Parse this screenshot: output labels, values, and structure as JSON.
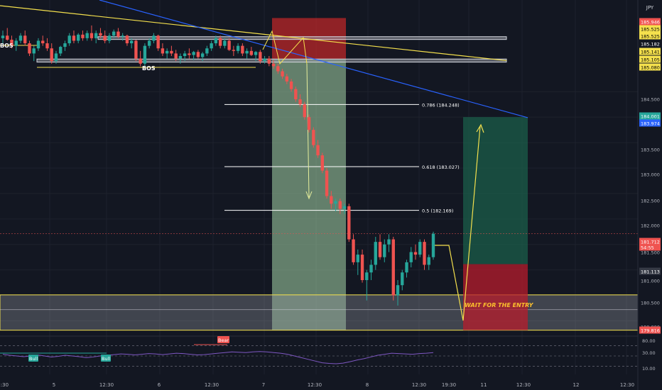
{
  "symbol_currency": "JPY",
  "colors": {
    "background": "#131722",
    "bull": "#26a69a",
    "bear": "#ef5350",
    "grid": "#1e222d",
    "fib_line": "#ffffff",
    "zone_grey": "#9598a1",
    "trend_yellow": "#f4e04d",
    "trend_blue": "#2962ff",
    "arrow_yellow": "#e6ee9c",
    "rsi_line": "#7e57c2",
    "target_green": "#1b5e4a",
    "stop_red": "#b71c2c"
  },
  "annotations": {
    "bos_left": "BOS",
    "bos_mid": "BOS",
    "wait_entry": "WAIT FOR THE ENTRY",
    "bull_label": "Bull",
    "bear_label": "Bear"
  },
  "price_labels": [
    {
      "text": "185.946",
      "bg": "#ef5350",
      "fg": "#ffffff"
    },
    {
      "text": "185.525",
      "bg": "#f4e04d",
      "fg": "#000000"
    },
    {
      "text": "185.525",
      "bg": "#f4e04d",
      "fg": "#000000"
    },
    {
      "text": "185.182",
      "bg": "#131722",
      "fg": "#ffffff"
    },
    {
      "text": "185.141",
      "bg": "#f4e04d",
      "fg": "#000000"
    },
    {
      "text": "185.105",
      "bg": "#f4e04d",
      "fg": "#000000"
    },
    {
      "text": "185.080",
      "bg": "#f4e04d",
      "fg": "#000000"
    },
    {
      "text": "184.500",
      "bg": "none",
      "fg": "#b2b5be"
    },
    {
      "text": "184.001",
      "bg": "#26a69a",
      "fg": "#ffffff"
    },
    {
      "text": "183.974",
      "bg": "#2962ff",
      "fg": "#ffffff"
    },
    {
      "text": "183.500",
      "bg": "none",
      "fg": "#b2b5be"
    },
    {
      "text": "183.000",
      "bg": "none",
      "fg": "#b2b5be"
    },
    {
      "text": "182.500",
      "bg": "none",
      "fg": "#b2b5be"
    },
    {
      "text": "182.000",
      "bg": "none",
      "fg": "#b2b5be"
    },
    {
      "text": "181.712",
      "bg": "#ef5350",
      "fg": "#ffffff"
    },
    {
      "text": "54:55",
      "bg": "#ef5350",
      "fg": "#ffffff"
    },
    {
      "text": "181.500",
      "bg": "none",
      "fg": "#b2b5be"
    },
    {
      "text": "181.113",
      "bg": "#363a45",
      "fg": "#ffffff"
    },
    {
      "text": "181.000",
      "bg": "none",
      "fg": "#b2b5be"
    },
    {
      "text": "180.500",
      "bg": "none",
      "fg": "#b2b5be"
    },
    {
      "text": "180.000",
      "bg": "none",
      "fg": "#b2b5be"
    },
    {
      "text": "179.816",
      "bg": "#ef5350",
      "fg": "#ffffff"
    }
  ],
  "rsi_axis": [
    "80.00",
    "30.00",
    "10.00"
  ],
  "x_ticks": [
    "12:30",
    "5",
    "12:30",
    "6",
    "12:30",
    "7",
    "12:30",
    "8",
    "12:30",
    "19:30",
    "11",
    "12:30",
    "12",
    "12:30"
  ],
  "chart_data": {
    "type": "candlestick",
    "title": "",
    "ylim": [
      179.7,
      186.3
    ],
    "price_ticks": [
      184.5,
      184.0,
      183.5,
      183.0,
      182.5,
      182.0,
      181.5,
      181.0,
      180.5,
      180.0
    ],
    "candles": [
      [
        185.55,
        185.7,
        185.4,
        185.6
      ],
      [
        185.6,
        185.75,
        185.5,
        185.52
      ],
      [
        185.52,
        185.6,
        185.35,
        185.4
      ],
      [
        185.4,
        185.55,
        185.3,
        185.5
      ],
      [
        185.5,
        185.65,
        185.45,
        185.6
      ],
      [
        185.6,
        185.7,
        185.4,
        185.45
      ],
      [
        185.45,
        185.5,
        185.2,
        185.25
      ],
      [
        185.25,
        185.4,
        185.1,
        185.35
      ],
      [
        185.35,
        185.55,
        185.3,
        185.5
      ],
      [
        185.5,
        185.6,
        185.4,
        185.45
      ],
      [
        185.45,
        185.55,
        185.3,
        185.35
      ],
      [
        185.35,
        185.45,
        185.05,
        185.1
      ],
      [
        185.1,
        185.3,
        185.05,
        185.25
      ],
      [
        185.25,
        185.4,
        185.2,
        185.38
      ],
      [
        185.38,
        185.5,
        185.3,
        185.45
      ],
      [
        185.45,
        185.65,
        185.4,
        185.6
      ],
      [
        185.6,
        185.7,
        185.45,
        185.5
      ],
      [
        185.5,
        185.65,
        185.45,
        185.62
      ],
      [
        185.62,
        185.7,
        185.5,
        185.55
      ],
      [
        185.55,
        185.7,
        185.5,
        185.65
      ],
      [
        185.65,
        185.8,
        185.5,
        185.55
      ],
      [
        185.55,
        185.7,
        185.45,
        185.65
      ],
      [
        185.65,
        185.75,
        185.55,
        185.6
      ],
      [
        185.6,
        185.7,
        185.45,
        185.5
      ],
      [
        185.5,
        185.65,
        185.45,
        185.6
      ],
      [
        185.6,
        185.72,
        185.55,
        185.68
      ],
      [
        185.68,
        185.75,
        185.55,
        185.58
      ],
      [
        185.58,
        185.65,
        185.5,
        185.6
      ],
      [
        185.6,
        185.62,
        185.4,
        185.45
      ],
      [
        185.45,
        185.55,
        185.35,
        185.5
      ],
      [
        185.5,
        185.52,
        185.1,
        185.15
      ],
      [
        185.15,
        185.3,
        185.0,
        185.05
      ],
      [
        185.05,
        185.45,
        185.0,
        185.4
      ],
      [
        185.4,
        185.55,
        185.35,
        185.5
      ],
      [
        185.5,
        185.65,
        185.45,
        185.6
      ],
      [
        185.6,
        185.62,
        185.3,
        185.35
      ],
      [
        185.35,
        185.45,
        185.2,
        185.25
      ],
      [
        185.25,
        185.35,
        185.15,
        185.3
      ],
      [
        185.3,
        185.4,
        185.2,
        185.25
      ],
      [
        185.25,
        185.32,
        185.1,
        185.15
      ],
      [
        185.15,
        185.25,
        185.05,
        185.2
      ],
      [
        185.2,
        185.3,
        185.1,
        185.25
      ],
      [
        185.25,
        185.35,
        185.15,
        185.22
      ],
      [
        185.22,
        185.3,
        185.12,
        185.28
      ],
      [
        185.28,
        185.32,
        185.15,
        185.18
      ],
      [
        185.18,
        185.28,
        185.1,
        185.25
      ],
      [
        185.25,
        185.4,
        185.2,
        185.35
      ],
      [
        185.35,
        185.5,
        185.3,
        185.45
      ],
      [
        185.45,
        185.6,
        185.4,
        185.55
      ],
      [
        185.55,
        185.6,
        185.35,
        185.4
      ],
      [
        185.4,
        185.55,
        185.35,
        185.5
      ],
      [
        185.5,
        185.55,
        185.3,
        185.32
      ],
      [
        185.32,
        185.4,
        185.2,
        185.3
      ],
      [
        185.3,
        185.45,
        185.25,
        185.4
      ],
      [
        185.4,
        185.45,
        185.2,
        185.25
      ],
      [
        185.25,
        185.35,
        185.15,
        185.3
      ],
      [
        185.3,
        185.38,
        185.2,
        185.22
      ],
      [
        185.22,
        185.3,
        185.1,
        185.28
      ],
      [
        185.28,
        185.32,
        185.05,
        185.1
      ],
      [
        185.1,
        185.2,
        185.05,
        185.15
      ],
      [
        185.15,
        185.2,
        185.0,
        185.05
      ],
      [
        185.05,
        185.12,
        184.95,
        185.0
      ],
      [
        185.0,
        185.05,
        184.85,
        184.9
      ],
      [
        184.9,
        184.95,
        184.75,
        184.8
      ],
      [
        184.8,
        184.85,
        184.65,
        184.7
      ],
      [
        184.7,
        184.75,
        184.5,
        184.55
      ],
      [
        184.55,
        184.6,
        184.3,
        184.35
      ],
      [
        184.35,
        184.45,
        184.2,
        184.25
      ],
      [
        184.25,
        184.3,
        183.95,
        184.0
      ],
      [
        184.0,
        184.05,
        183.7,
        183.75
      ],
      [
        183.75,
        183.8,
        183.4,
        183.45
      ],
      [
        183.45,
        183.55,
        183.2,
        183.25
      ],
      [
        183.25,
        183.3,
        182.9,
        182.95
      ],
      [
        182.95,
        183.0,
        182.4,
        182.45
      ],
      [
        182.45,
        182.55,
        182.2,
        182.3
      ],
      [
        182.3,
        182.4,
        182.15,
        182.35
      ],
      [
        182.35,
        182.4,
        182.1,
        182.2
      ],
      [
        182.2,
        182.3,
        182.1,
        182.25
      ],
      [
        182.25,
        182.3,
        181.55,
        181.6
      ],
      [
        181.6,
        181.7,
        181.1,
        181.15
      ],
      [
        181.15,
        181.4,
        180.9,
        181.3
      ],
      [
        181.3,
        181.4,
        180.75,
        180.8
      ],
      [
        180.8,
        181.0,
        180.4,
        180.95
      ],
      [
        180.95,
        181.2,
        180.8,
        181.1
      ],
      [
        181.1,
        181.65,
        181.0,
        181.55
      ],
      [
        181.55,
        181.7,
        181.2,
        181.25
      ],
      [
        181.25,
        181.6,
        181.15,
        181.5
      ],
      [
        181.5,
        181.7,
        181.35,
        181.6
      ],
      [
        181.6,
        181.65,
        180.4,
        180.5
      ],
      [
        180.5,
        180.8,
        180.3,
        180.7
      ],
      [
        180.7,
        181.0,
        180.6,
        180.95
      ],
      [
        180.95,
        181.2,
        180.85,
        181.15
      ],
      [
        181.15,
        181.45,
        181.05,
        181.35
      ],
      [
        181.35,
        181.5,
        181.2,
        181.3
      ],
      [
        181.3,
        181.6,
        181.25,
        181.55
      ],
      [
        181.55,
        181.6,
        181.0,
        181.1
      ],
      [
        181.1,
        181.3,
        181.0,
        181.25
      ],
      [
        181.25,
        181.75,
        181.2,
        181.71
      ]
    ],
    "fib_levels": [
      {
        "label": "0.786 (184.248)",
        "price": 184.248
      },
      {
        "label": "0.618 (183.027)",
        "price": 183.027
      },
      {
        "label": "0.5 (182.169)",
        "price": 182.169
      }
    ],
    "zones": {
      "upper_band": [
        185.525,
        185.58
      ],
      "lower_band": [
        185.08,
        185.141
      ],
      "bottom_band": [
        179.816,
        180.51
      ],
      "red_box": [
        185.141,
        185.946
      ],
      "green_short_zone": [
        179.816,
        185.141
      ],
      "target_box": [
        181.113,
        184.001
      ],
      "stop_box": [
        179.816,
        181.113
      ]
    },
    "rsi": [
      55,
      52,
      50,
      48,
      50,
      53,
      50,
      47,
      49,
      52,
      50,
      48,
      45,
      47,
      50,
      52,
      54,
      56,
      55,
      53,
      55,
      57,
      56,
      54,
      56,
      58,
      57,
      55,
      53,
      54,
      56,
      58,
      60,
      62,
      61,
      60,
      62,
      63,
      62,
      60,
      58,
      55,
      50,
      45,
      40,
      35,
      30,
      28,
      27,
      29,
      33,
      38,
      42,
      47,
      52,
      55,
      58,
      57,
      56,
      55,
      57,
      58,
      60
    ]
  }
}
